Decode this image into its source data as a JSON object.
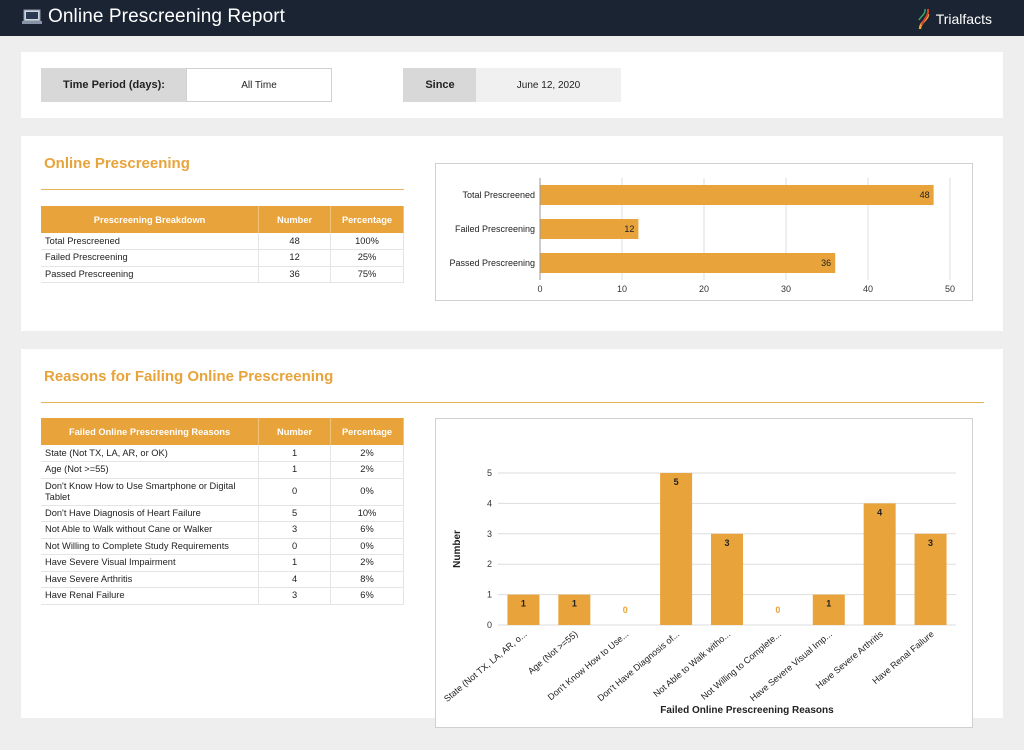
{
  "header": {
    "title": "Online Prescreening Report",
    "brand": "Trialfacts",
    "bg_color": "#1b2433"
  },
  "filters": {
    "time_period_label": "Time Period (days):",
    "time_period_value": "All Time",
    "since_label": "Since",
    "since_value": "June 12, 2020"
  },
  "accent_color": "#e8a33a",
  "section1": {
    "title": "Online Prescreening",
    "table": {
      "headers": [
        "Prescreening Breakdown",
        "Number",
        "Percentage"
      ],
      "rows": [
        [
          "Total Prescreened",
          "48",
          "100%"
        ],
        [
          "Failed Prescreening",
          "12",
          "25%"
        ],
        [
          "Passed Prescreening",
          "36",
          "75%"
        ]
      ]
    }
  },
  "section2": {
    "title": "Reasons for Failing Online Prescreening",
    "table": {
      "headers": [
        "Failed Online Prescreening Reasons",
        "Number",
        "Percentage"
      ],
      "rows": [
        [
          "State (Not TX, LA, AR, or OK)",
          "1",
          "2%"
        ],
        [
          "Age (Not >=55)",
          "1",
          "2%"
        ],
        [
          "Don't Know How to Use Smartphone or Digital Tablet",
          "0",
          "0%"
        ],
        [
          "Don't Have Diagnosis of Heart Failure",
          "5",
          "10%"
        ],
        [
          "Not Able to Walk without Cane or Walker",
          "3",
          "6%"
        ],
        [
          "Not Willing to Complete Study Requirements",
          "0",
          "0%"
        ],
        [
          "Have Severe Visual Impairment",
          "1",
          "2%"
        ],
        [
          "Have Severe Arthritis",
          "4",
          "8%"
        ],
        [
          "Have Renal Failure",
          "3",
          "6%"
        ]
      ]
    }
  },
  "chart_data": [
    {
      "type": "bar",
      "orientation": "horizontal",
      "categories": [
        "Total Prescreened",
        "Failed Prescreening",
        "Passed Prescreening"
      ],
      "values": [
        48,
        12,
        36
      ],
      "xlim": [
        0,
        50
      ],
      "ticks": [
        "0",
        "10",
        "20",
        "30",
        "40",
        "50"
      ],
      "grid": true,
      "title": "",
      "xlabel": "",
      "ylabel": ""
    },
    {
      "type": "bar",
      "orientation": "vertical",
      "categories": [
        "State (Not TX, LA, AR, o...",
        "Age (Not >=55)",
        "Don't Know How to Use...",
        "Don't Have Diagnosis of...",
        "Not Able to Walk witho...",
        "Not Willing to Complete...",
        "Have Severe Visual Imp...",
        "Have Severe Arthritis",
        "Have Renal Failure"
      ],
      "values": [
        1,
        1,
        0,
        5,
        3,
        0,
        1,
        4,
        3
      ],
      "ylim": [
        0,
        5
      ],
      "ticks": [
        "0",
        "1",
        "2",
        "3",
        "4",
        "5"
      ],
      "grid": true,
      "title": "",
      "xlabel": "Failed Online Prescreening Reasons",
      "ylabel": "Number"
    }
  ]
}
